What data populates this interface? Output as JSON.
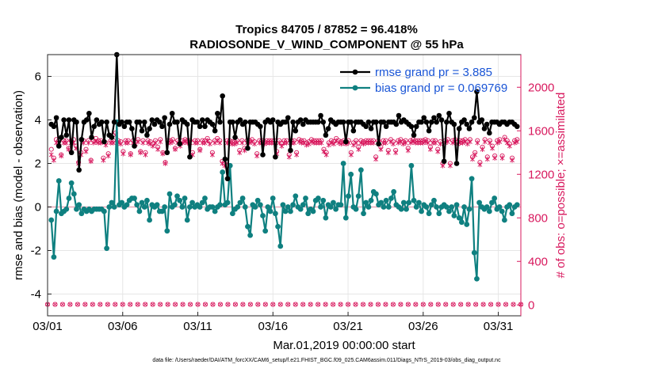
{
  "chart_data": {
    "type": "line",
    "title_line1": "Tropics 84705 / 87852 = 96.418%",
    "title_line2": "RADIOSONDE_V_WIND_COMPONENT @ 55 hPa",
    "xlabel": "Mar.01,2019 00:00:00 start",
    "ylabel_left": "rmse and bias (model - observation)",
    "ylabel_right": "# of obs: o=possible; ×=assimilated",
    "footnote": "data file: /Users/raeder/DAI/ATM_forcXX/CAM6_setup/f.e21.FHIST_BGC.f09_025.CAM6assim.011/Diags_NTrS_2019-03/obs_diag_output.nc",
    "xlim": [
      0,
      31.5
    ],
    "ylim_left": [
      -5,
      7
    ],
    "ylim_right": [
      -100,
      2300
    ],
    "x_ticks": [
      0,
      5,
      10,
      15,
      20,
      25,
      30
    ],
    "x_tick_labels": [
      "03/01",
      "03/06",
      "03/11",
      "03/16",
      "03/21",
      "03/26",
      "03/31"
    ],
    "y_ticks_left": [
      -4,
      -2,
      0,
      2,
      4,
      6
    ],
    "y_tick_labels_left": [
      "-4",
      "-2",
      "0",
      "2",
      "4",
      "6"
    ],
    "y_ticks_right": [
      0,
      400,
      800,
      1200,
      1600,
      2000
    ],
    "y_tick_labels_right": [
      "0",
      "400",
      "800",
      "1200",
      "1600",
      "2000"
    ],
    "grid": true,
    "zero_line": 0,
    "legend_position": "top-right",
    "colors": {
      "rmse": "#000000",
      "bias": "#0f8080",
      "obs": "#d8195e",
      "legend_text": "#1a55d6"
    },
    "series": [
      {
        "name": "rmse grand pr = 3.885",
        "axis": "left",
        "values": [
          3.8,
          3.7,
          4.1,
          2.8,
          3.2,
          4.0,
          3.3,
          4.0,
          2.5,
          4.0,
          3.9,
          1.7,
          3.1,
          3.9,
          4.0,
          4.3,
          3.2,
          3.7,
          4.0,
          3.8,
          3.9,
          3.0,
          3.9,
          3.3,
          3.2,
          3.9,
          7.0,
          3.8,
          3.9,
          3.7,
          3.9,
          3.9,
          3.6,
          2.8,
          3.9,
          3.9,
          3.5,
          3.9,
          3.3,
          3.6,
          4.0,
          3.8,
          4.0,
          3.9,
          3.7,
          4.1,
          2.5,
          3.8,
          4.3,
          3.9,
          3.9,
          2.9,
          4.0,
          3.9,
          3.8,
          2.3,
          4.0,
          3.9,
          3.9,
          3.7,
          4.0,
          3.7,
          4.0,
          3.9,
          3.8,
          3.5,
          4.3,
          3.9,
          5.1,
          2.2,
          1.3,
          3.9,
          3.9,
          3.2,
          3.9,
          4.0,
          3.8,
          3.9,
          2.7,
          3.9,
          3.9,
          3.9,
          3.8,
          3.7,
          2.4,
          3.9,
          4.0,
          3.9,
          4.0,
          2.3,
          3.9,
          3.8,
          3.9,
          3.9,
          4.1,
          2.6,
          3.9,
          3.5,
          3.9,
          4.0,
          3.8,
          4.0,
          3.9,
          3.9,
          3.9,
          3.9,
          3.9,
          4.2,
          3.9,
          3.3,
          3.6,
          4.0,
          3.9,
          3.8,
          3.9,
          3.9,
          3.9,
          3.0,
          3.9,
          3.9,
          3.5,
          3.9,
          3.9,
          3.9,
          3.8,
          3.7,
          3.9,
          3.6,
          3.9,
          3.9,
          2.9,
          3.9,
          3.9,
          3.7,
          3.9,
          3.9,
          3.9,
          3.8,
          4.2,
          3.9,
          4.0,
          3.9,
          3.8,
          3.7,
          3.3,
          3.7,
          3.9,
          3.9,
          4.1,
          3.9,
          3.5,
          3.9,
          4.1,
          3.9,
          4.2,
          4.0,
          2.1,
          3.9,
          4.3,
          3.9,
          3.8,
          2.0,
          3.6,
          3.9,
          4.0,
          3.8,
          3.6,
          3.9,
          4.1,
          5.3,
          3.9,
          4.0,
          3.6,
          3.8,
          3.4,
          3.9,
          3.9,
          3.9,
          3.8,
          3.9,
          3.9,
          3.8,
          3.9,
          3.9,
          3.8,
          3.7
        ]
      },
      {
        "name": "bias grand pr = 0.069769",
        "axis": "left",
        "values": [
          -0.6,
          -2.3,
          -0.2,
          1.2,
          -0.3,
          -0.2,
          -0.1,
          0.4,
          1.1,
          0.6,
          -0.1,
          0.1,
          -0.3,
          -0.1,
          -0.2,
          -0.1,
          -0.2,
          -0.1,
          -0.1,
          -0.1,
          -0.1,
          -0.2,
          -1.9,
          0.0,
          0.2,
          0.0,
          3.9,
          0.1,
          0.2,
          0.0,
          0.1,
          0.3,
          0.4,
          0.4,
          0.1,
          -0.2,
          0.2,
          0.0,
          0.3,
          -0.6,
          0.1,
          0.0,
          0.1,
          -0.2,
          -0.2,
          0.0,
          -1.1,
          0.6,
          0.0,
          0.1,
          0.5,
          0.3,
          0.0,
          0.4,
          -0.6,
          0.0,
          0.2,
          0.0,
          0.1,
          0.0,
          0.2,
          0.4,
          -0.1,
          0.0,
          0.0,
          -0.2,
          0.0,
          0.1,
          1.6,
          0.1,
          0.2,
          1.9,
          -0.3,
          -0.1,
          0.0,
          0.2,
          0.4,
          0.0,
          -0.9,
          -1.3,
          0.1,
          0.0,
          0.3,
          0.1,
          -0.4,
          -1.1,
          0.0,
          -0.2,
          0.4,
          -0.3,
          -0.9,
          -1.8,
          0.1,
          -0.2,
          0.0,
          -0.2,
          0.1,
          0.5,
          0.0,
          -0.1,
          0.1,
          0.4,
          -0.3,
          -0.1,
          -0.2,
          0.3,
          0.4,
          0.0,
          0.3,
          -0.5,
          0.1,
          0.0,
          0.2,
          -0.1,
          0.1,
          0.1,
          2.0,
          -0.5,
          0.5,
          1.5,
          0.0,
          -0.1,
          0.5,
          1.7,
          -0.3,
          0.2,
          0.0,
          0.3,
          0.7,
          0.6,
          0.1,
          0.2,
          0.0,
          0.3,
          0.0,
          0.4,
          0.7,
          0.1,
          0.0,
          -0.1,
          0.2,
          -0.1,
          0.2,
          1.9,
          0.3,
          0.0,
          0.2,
          -0.2,
          0.1,
          0.0,
          -0.3,
          0.1,
          0.3,
          0.0,
          -0.3,
          0.0,
          0.1,
          0.0,
          -0.2,
          0.0,
          -0.4,
          0.1,
          -0.5,
          -0.7,
          0.0,
          -0.8,
          -0.1,
          1.3,
          -2.1,
          -3.3,
          0.2,
          0.0,
          -0.1,
          0.0,
          -0.2,
          0.2,
          0.4,
          -0.1,
          0.0,
          -0.2,
          -0.6,
          0.0,
          0.1,
          -0.3,
          0.0,
          0.1
        ]
      },
      {
        "name": "possible obs",
        "axis": "right",
        "marker": "o",
        "values": [
          1430,
          1350,
          1520,
          1510,
          1380,
          1510,
          1510,
          1440,
          1510,
          1520,
          1460,
          1310,
          1400,
          1510,
          1430,
          1510,
          1330,
          1510,
          1530,
          1510,
          1510,
          1350,
          1490,
          1390,
          1510,
          1510,
          1580,
          1510,
          1500,
          1410,
          1510,
          1510,
          1390,
          1510,
          1500,
          1520,
          1410,
          1510,
          1400,
          1510,
          1500,
          1480,
          1510,
          1450,
          1520,
          1400,
          1310,
          1510,
          1510,
          1520,
          1440,
          1510,
          1480,
          1510,
          1520,
          1510,
          1510,
          1400,
          1510,
          1510,
          1430,
          1510,
          1510,
          1530,
          1500,
          1400,
          1510,
          1530,
          1510,
          1320,
          1300,
          1510,
          1510,
          1500,
          1500,
          1510,
          1420,
          1510,
          1440,
          1510,
          1510,
          1520,
          1500,
          1390,
          1510,
          1510,
          1500,
          1510,
          1510,
          1510,
          1510,
          1410,
          1510,
          1480,
          1510,
          1510,
          1380,
          1510,
          1510,
          1400,
          1520,
          1510,
          1510,
          1490,
          1500,
          1520,
          1510,
          1510,
          1510,
          1510,
          1430,
          1400,
          1490,
          1510,
          1500,
          1530,
          1510,
          1500,
          1510,
          1500,
          1510,
          1400,
          1490,
          1510,
          1450,
          1510,
          1500,
          1510,
          1510,
          1510,
          1510,
          1360,
          1510,
          1450,
          1510,
          1510,
          1420,
          1520,
          1500,
          1420,
          1510,
          1520,
          1500,
          1510,
          1440,
          1510,
          1520,
          1510,
          1510,
          1510,
          1510,
          1520,
          1510,
          1450,
          1510,
          1510,
          1430,
          1500,
          1300,
          1510,
          1520,
          1300,
          1510,
          1520,
          1500,
          1510,
          1510,
          1520,
          1500,
          1520,
          1360,
          1400,
          1510,
          1310,
          1450,
          1520,
          1360,
          1510,
          1460,
          1370,
          1510,
          1520,
          1370,
          1540,
          1510,
          1480,
          1350,
          1510,
          1520
        ]
      },
      {
        "name": "assimilated obs",
        "axis": "right",
        "marker": "x",
        "values": [
          1380,
          1330,
          1490,
          1490,
          1370,
          1490,
          1490,
          1430,
          1490,
          1490,
          1440,
          1300,
          1380,
          1490,
          1410,
          1490,
          1320,
          1490,
          1500,
          1490,
          1490,
          1330,
          1470,
          1370,
          1490,
          1490,
          1560,
          1490,
          1480,
          1390,
          1490,
          1490,
          1380,
          1490,
          1480,
          1500,
          1400,
          1490,
          1380,
          1490,
          1480,
          1460,
          1490,
          1430,
          1500,
          1390,
          1300,
          1490,
          1490,
          1500,
          1430,
          1490,
          1460,
          1490,
          1500,
          1490,
          1490,
          1380,
          1490,
          1490,
          1420,
          1490,
          1490,
          1510,
          1480,
          1380,
          1490,
          1510,
          1490,
          1300,
          1280,
          1490,
          1490,
          1480,
          1480,
          1490,
          1400,
          1490,
          1420,
          1490,
          1490,
          1500,
          1480,
          1370,
          1490,
          1490,
          1480,
          1490,
          1490,
          1490,
          1490,
          1390,
          1490,
          1460,
          1490,
          1490,
          1360,
          1490,
          1490,
          1380,
          1500,
          1490,
          1490,
          1470,
          1480,
          1500,
          1490,
          1490,
          1490,
          1490,
          1410,
          1380,
          1470,
          1490,
          1480,
          1510,
          1490,
          1480,
          1490,
          1480,
          1490,
          1380,
          1470,
          1490,
          1430,
          1490,
          1480,
          1490,
          1490,
          1490,
          1490,
          1340,
          1490,
          1430,
          1490,
          1490,
          1400,
          1500,
          1480,
          1400,
          1490,
          1500,
          1480,
          1490,
          1420,
          1490,
          1500,
          1490,
          1490,
          1490,
          1490,
          1500,
          1490,
          1430,
          1490,
          1490,
          1410,
          1480,
          1280,
          1490,
          1500,
          1280,
          1490,
          1500,
          1480,
          1490,
          1490,
          1500,
          1480,
          1500,
          1340,
          1380,
          1490,
          1290,
          1430,
          1500,
          1340,
          1490,
          1440,
          1350,
          1490,
          1500,
          1350,
          1520,
          1490,
          1460,
          1330,
          1490,
          1500
        ]
      }
    ],
    "bottom_obs_series": {
      "name": "low-level obs counts",
      "axis": "right",
      "values": [
        5,
        5,
        5,
        5,
        5,
        5,
        5,
        5,
        5,
        5,
        5,
        5,
        5,
        5,
        5,
        5,
        5,
        5,
        5,
        5,
        5,
        5,
        5,
        5,
        5,
        5,
        5,
        5,
        5,
        5,
        5,
        5,
        5,
        5,
        5,
        5,
        5,
        5,
        5,
        5,
        5,
        5,
        5,
        5,
        5,
        5,
        5,
        5,
        5,
        5,
        5,
        5,
        5,
        5,
        5,
        5,
        5,
        5,
        5,
        5,
        5,
        5,
        5,
        5
      ]
    }
  }
}
